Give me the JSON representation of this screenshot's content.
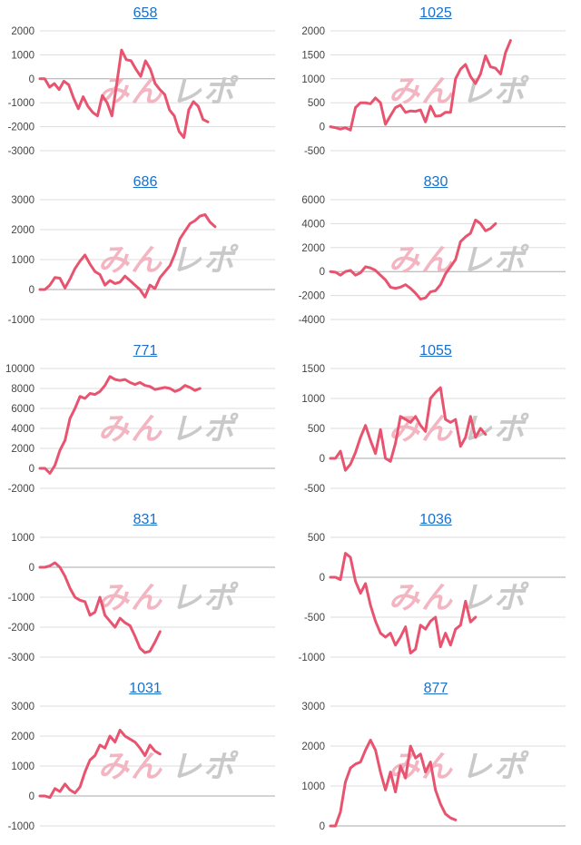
{
  "colors": {
    "line": "#e8546f",
    "grid": "#dddddd",
    "axis": "#aaaaaa",
    "title": "#1a6fc9",
    "wm_pink": "#f3b5c1",
    "wm_gray": "#c9c9c9"
  },
  "watermark": {
    "part1": "みん",
    "part2": "レポ"
  },
  "chart_data": [
    {
      "type": "line",
      "title": "658",
      "yticks": [
        2000,
        1000,
        0,
        -1000,
        -2000,
        -3000
      ],
      "ylim": [
        -3000,
        2000
      ],
      "n_points": 50,
      "values": [
        0,
        0,
        -350,
        -200,
        -450,
        -100,
        -250,
        -800,
        -1250,
        -750,
        -1150,
        -1400,
        -1550,
        -700,
        -1000,
        -1550,
        -200,
        1200,
        800,
        750,
        400,
        100,
        750,
        400,
        -200,
        -450,
        -650,
        -1300,
        -1550,
        -2200,
        -2450,
        -1300,
        -950,
        -1150,
        -1700,
        -1800
      ]
    },
    {
      "type": "line",
      "title": "1025",
      "yticks": [
        2000,
        1500,
        1000,
        500,
        0,
        -500
      ],
      "ylim": [
        -500,
        2000
      ],
      "n_points": 48,
      "values": [
        0,
        -20,
        -50,
        -20,
        -70,
        400,
        500,
        500,
        480,
        600,
        500,
        50,
        230,
        400,
        450,
        300,
        330,
        320,
        350,
        100,
        430,
        220,
        230,
        300,
        300,
        1000,
        1200,
        1300,
        1050,
        900,
        1100,
        1480,
        1250,
        1220,
        1100,
        1550,
        1800
      ]
    },
    {
      "type": "line",
      "title": "686",
      "yticks": [
        3000,
        2000,
        1000,
        0,
        -1000
      ],
      "ylim": [
        -1000,
        3000
      ],
      "n_points": 48,
      "values": [
        0,
        0,
        150,
        400,
        380,
        50,
        350,
        700,
        950,
        1150,
        850,
        600,
        500,
        150,
        300,
        200,
        250,
        450,
        300,
        150,
        0,
        -250,
        150,
        30,
        400,
        600,
        800,
        1200,
        1700,
        1950,
        2200,
        2300,
        2450,
        2500,
        2250,
        2100
      ]
    },
    {
      "type": "line",
      "title": "830",
      "yticks": [
        6000,
        4000,
        2000,
        0,
        -2000,
        -4000
      ],
      "ylim": [
        -4000,
        6000
      ],
      "n_points": 48,
      "values": [
        0,
        -50,
        -300,
        0,
        100,
        -300,
        -100,
        400,
        300,
        100,
        -300,
        -700,
        -1300,
        -1400,
        -1300,
        -1100,
        -1400,
        -1800,
        -2300,
        -2200,
        -1700,
        -1600,
        -1100,
        -200,
        400,
        1000,
        2500,
        2900,
        3200,
        4300,
        4000,
        3400,
        3600,
        4000
      ]
    },
    {
      "type": "line",
      "title": "771",
      "yticks": [
        10000,
        8000,
        6000,
        4000,
        2000,
        0,
        -2000
      ],
      "ylim": [
        -2000,
        10000
      ],
      "n_points": 48,
      "values": [
        0,
        0,
        -500,
        300,
        1800,
        2800,
        5000,
        6000,
        7200,
        7000,
        7500,
        7400,
        7700,
        8300,
        9200,
        8900,
        8800,
        8900,
        8600,
        8400,
        8600,
        8300,
        8200,
        7900,
        8000,
        8100,
        8000,
        7700,
        7900,
        8300,
        8100,
        7800,
        8000
      ]
    },
    {
      "type": "line",
      "title": "1055",
      "yticks": [
        1500,
        1000,
        500,
        0,
        -500
      ],
      "ylim": [
        -500,
        1500
      ],
      "n_points": 48,
      "values": [
        0,
        0,
        120,
        -200,
        -100,
        100,
        350,
        550,
        300,
        80,
        480,
        0,
        -50,
        250,
        700,
        650,
        600,
        700,
        550,
        450,
        1000,
        1100,
        1180,
        650,
        600,
        650,
        200,
        350,
        700,
        350,
        500,
        400
      ]
    },
    {
      "type": "line",
      "title": "831",
      "yticks": [
        1000,
        0,
        -1000,
        -2000,
        -3000
      ],
      "ylim": [
        -3000,
        1000
      ],
      "n_points": 48,
      "values": [
        0,
        0,
        50,
        150,
        0,
        -300,
        -700,
        -1000,
        -1100,
        -1150,
        -1600,
        -1500,
        -1000,
        -1600,
        -1800,
        -2000,
        -1700,
        -1850,
        -1950,
        -2300,
        -2700,
        -2850,
        -2800,
        -2500,
        -2150
      ]
    },
    {
      "type": "line",
      "title": "1036",
      "yticks": [
        500,
        0,
        -500,
        -1000
      ],
      "ylim": [
        -1000,
        500
      ],
      "n_points": 48,
      "values": [
        0,
        0,
        -30,
        300,
        250,
        -50,
        -200,
        -80,
        -350,
        -550,
        -700,
        -750,
        -700,
        -850,
        -750,
        -620,
        -950,
        -900,
        -600,
        -650,
        -550,
        -500,
        -870,
        -700,
        -850,
        -650,
        -600,
        -300,
        -560,
        -500
      ]
    },
    {
      "type": "line",
      "title": "1031",
      "yticks": [
        3000,
        2000,
        1000,
        0,
        -1000
      ],
      "ylim": [
        -1000,
        3000
      ],
      "n_points": 48,
      "values": [
        0,
        0,
        -50,
        250,
        150,
        400,
        200,
        100,
        300,
        800,
        1200,
        1350,
        1700,
        1600,
        2000,
        1800,
        2200,
        2000,
        1900,
        1800,
        1600,
        1350,
        1700,
        1500,
        1400
      ]
    },
    {
      "type": "line",
      "title": "877",
      "yticks": [
        3000,
        2000,
        1000,
        0
      ],
      "ylim": [
        0,
        3000
      ],
      "n_points": 48,
      "values": [
        0,
        0,
        350,
        1100,
        1450,
        1550,
        1600,
        1900,
        2150,
        1900,
        1350,
        900,
        1350,
        850,
        1500,
        1200,
        2000,
        1700,
        1800,
        1350,
        1600,
        900,
        550,
        300,
        200,
        150
      ]
    }
  ]
}
